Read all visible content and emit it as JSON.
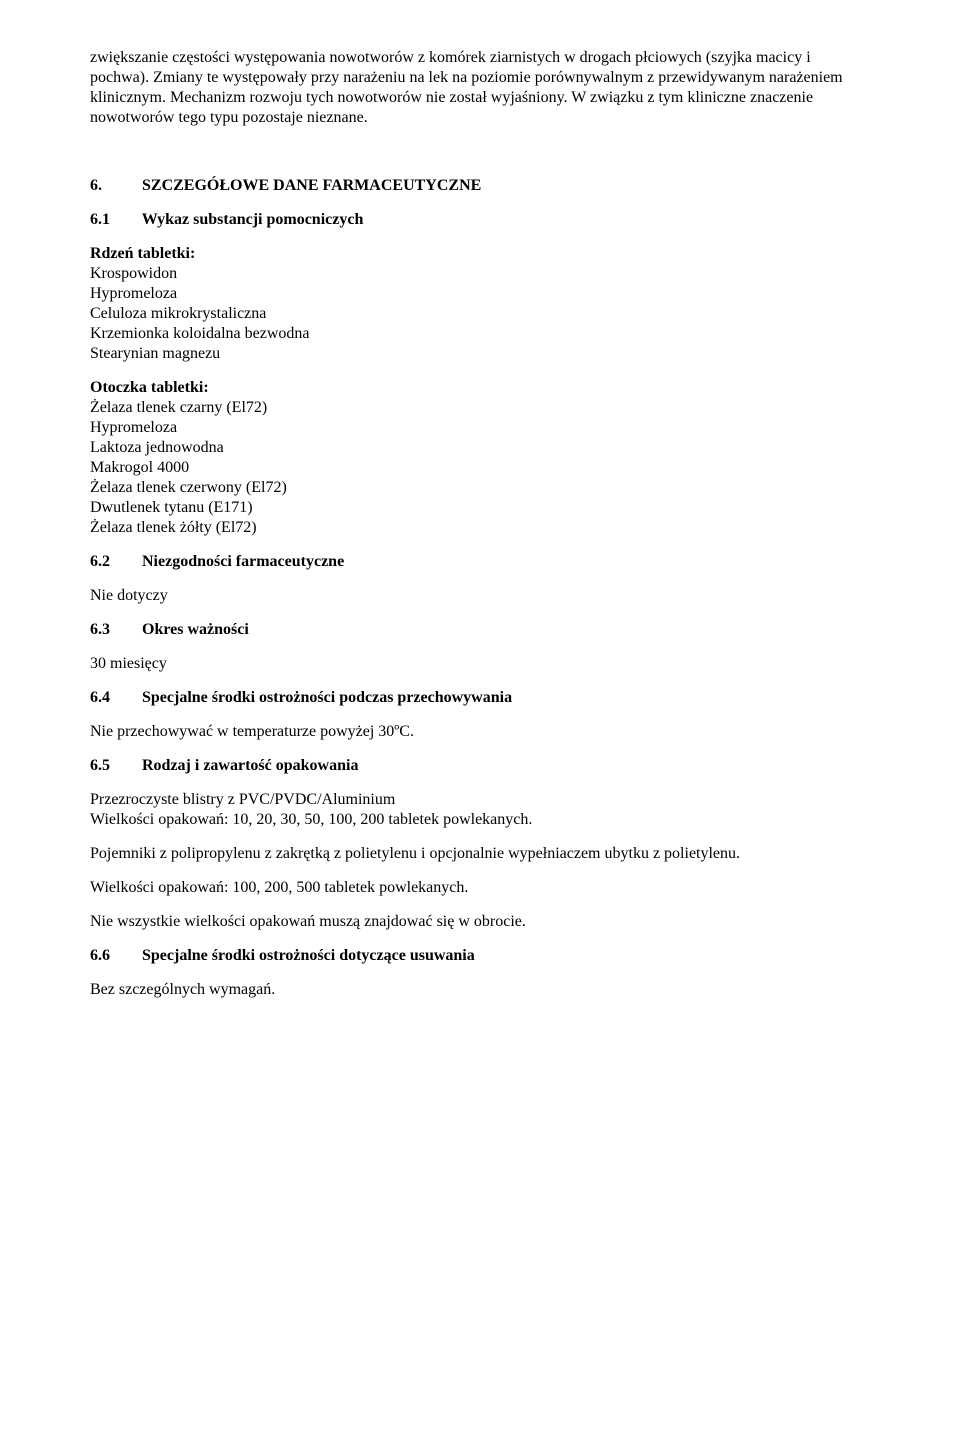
{
  "intro": {
    "para1": "zwiększanie częstości występowania nowotworów z komórek ziarnistych w drogach płciowych (szyjka macicy i pochwa). Zmiany te występowały przy narażeniu na lek na poziomie porównywalnym z przewidywanym narażeniem klinicznym. Mechanizm rozwoju tych nowotworów nie został wyjaśniony. W związku z tym kliniczne znaczenie nowotworów tego typu pozostaje nieznane."
  },
  "section6": {
    "num": "6.",
    "title": "SZCZEGÓŁOWE DANE FARMACEUTYCZNE"
  },
  "section6_1": {
    "num": "6.1",
    "title": "Wykaz substancji pomocniczych",
    "core_label": "Rdzeń tabletki:",
    "core_items": [
      "Krospowidon",
      "Hypromeloza",
      "Celuloza mikrokrystaliczna",
      "Krzemionka koloidalna bezwodna",
      "Stearynian magnezu"
    ],
    "coating_label": "Otoczka tabletki:",
    "coating_items": [
      "Żelaza tlenek czarny (El72)",
      "Hypromeloza",
      "Laktoza jednowodna",
      "Makrogol 4000",
      "Żelaza tlenek czerwony (El72)",
      "Dwutlenek tytanu (E171)",
      "Żelaza tlenek żółty (El72)"
    ]
  },
  "section6_2": {
    "num": "6.2",
    "title": "Niezgodności farmaceutyczne",
    "body": "Nie dotyczy"
  },
  "section6_3": {
    "num": "6.3",
    "title": "Okres ważności",
    "body": "30 miesięcy"
  },
  "section6_4": {
    "num": "6.4",
    "title": "Specjalne środki ostrożności podczas przechowywania",
    "body": "Nie przechowywać w temperaturze powyżej 30ºC."
  },
  "section6_5": {
    "num": "6.5",
    "title": "Rodzaj i zawartość opakowania",
    "para1_line1": "Przezroczyste blistry z PVC/PVDC/Aluminium",
    "para1_line2": "Wielkości opakowań: 10, 20, 30, 50, 100, 200 tabletek powlekanych.",
    "para2": "Pojemniki z polipropylenu z zakrętką z polietylenu i opcjonalnie wypełniaczem ubytku z polietylenu.",
    "para3": "Wielkości opakowań: 100, 200, 500 tabletek powlekanych.",
    "para4": "Nie wszystkie wielkości opakowań muszą znajdować się w obrocie."
  },
  "section6_6": {
    "num": "6.6",
    "title": "Specjalne środki ostrożności dotyczące usuwania",
    "body": "Bez szczególnych wymagań."
  }
}
